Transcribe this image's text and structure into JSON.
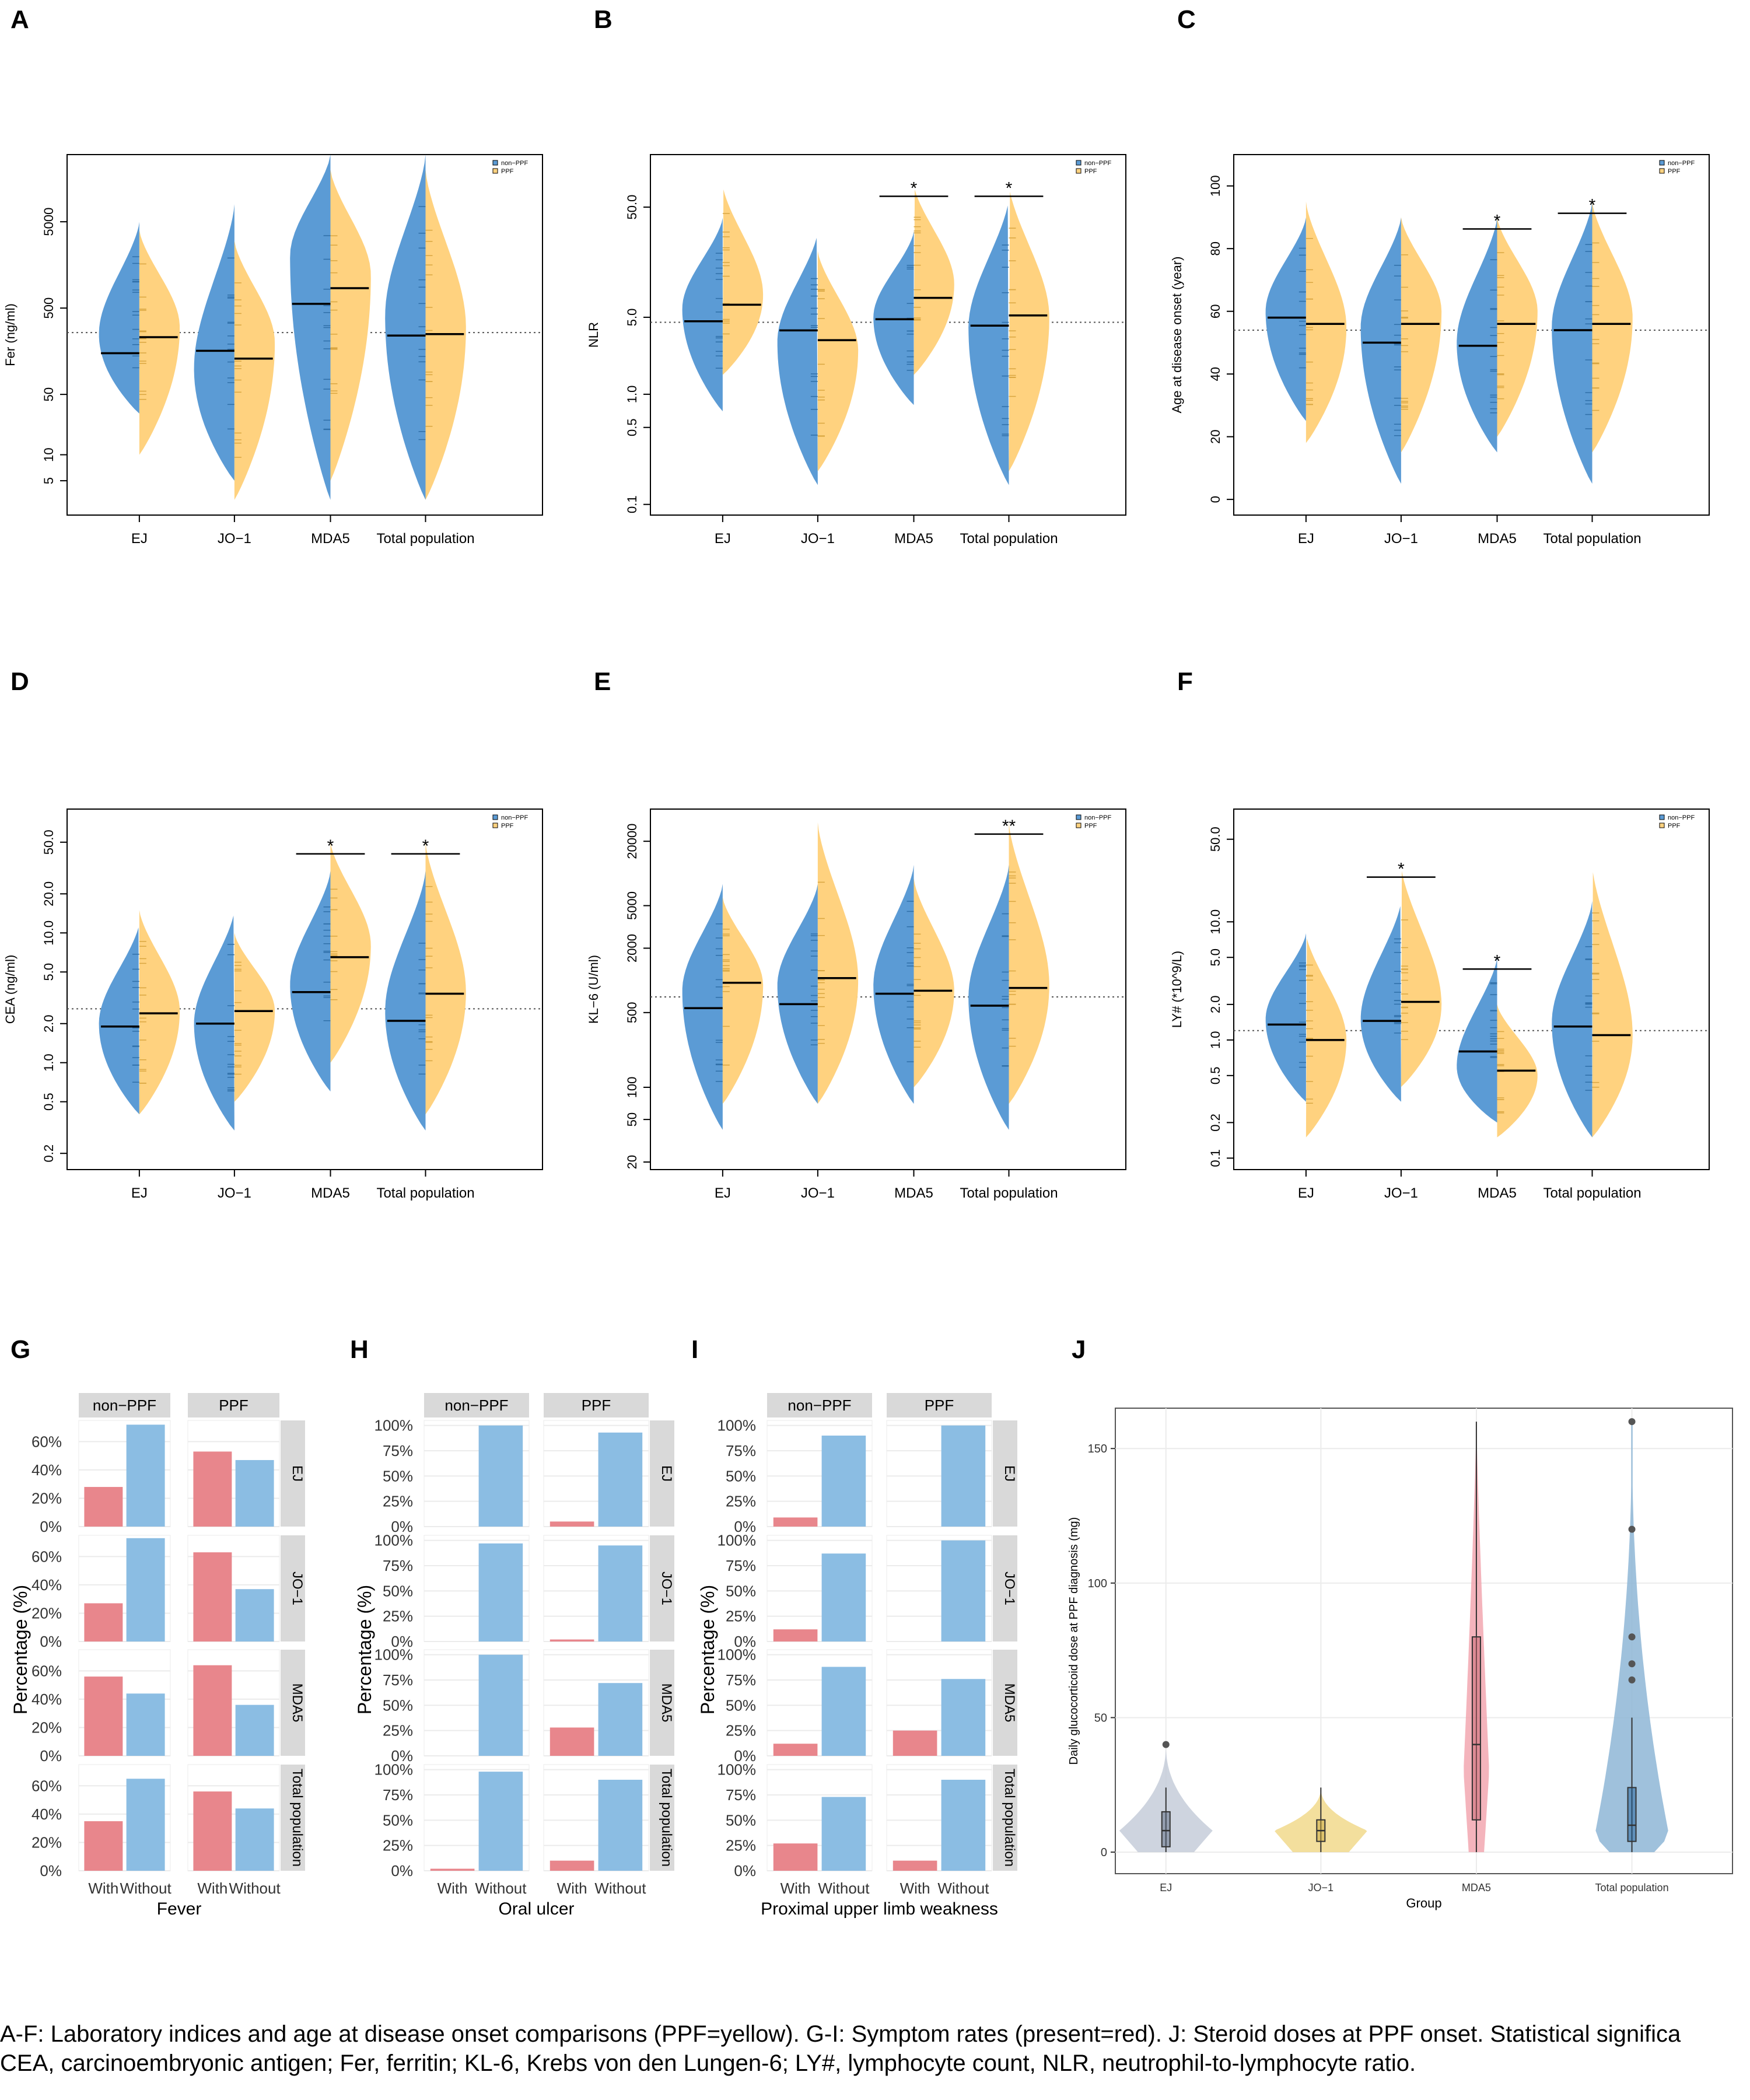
{
  "colors": {
    "nonppf": "#5b9bd5",
    "ppf": "#ffd27f",
    "with": "#e8868c",
    "without": "#8bbde3",
    "strip": "#d9d9d9",
    "ej": "#c6ccd9",
    "jo1": "#f1d98c",
    "mda5": "#f2a7b0",
    "total": "#8eb6d6"
  },
  "caption": {
    "line1": "A-F: Laboratory indices and age at disease onset comparisons (PPF=yellow). G-I: Symptom rates (present=red). J: Steroid doses at PPF onset. Statistical significa",
    "line2": "CEA, carcinoembryonic antigen; Fer, ferritin; KL-6, Krebs von den Lungen-6; LY#, lymphocyte count, NLR, neutrophil-to-lymphocyte ratio."
  },
  "chart_data": [
    {
      "id": "A",
      "type": "violin",
      "panel_label": "A",
      "ylabel": "Fer (ng/ml)",
      "yscale": "log",
      "ylim": [
        2,
        30000
      ],
      "yticks": [
        5,
        10,
        50,
        500,
        5000
      ],
      "categories": [
        "EJ",
        "JO−1",
        "MDA5",
        "Total population"
      ],
      "legend": [
        "non−PPF",
        "PPF"
      ],
      "legend_position": "top-right",
      "overall_median": 260,
      "series": [
        {
          "name": "non−PPF",
          "medians": [
            150,
            160,
            560,
            240
          ],
          "range": [
            [
              30,
              5000
            ],
            [
              5,
              8000
            ],
            [
              3,
              30000
            ],
            [
              3,
              30000
            ]
          ],
          "peak": [
            250,
            100,
            2000,
            400
          ]
        },
        {
          "name": "PPF",
          "medians": [
            230,
            130,
            850,
            250
          ],
          "range": [
            [
              10,
              4000
            ],
            [
              3,
              3000
            ],
            [
              5,
              20000
            ],
            [
              3,
              20000
            ]
          ],
          "peak": [
            300,
            200,
            1200,
            300
          ]
        }
      ],
      "significance": [
        "",
        "",
        "",
        ""
      ]
    },
    {
      "id": "B",
      "type": "violin",
      "panel_label": "B",
      "ylabel": "NLR",
      "yscale": "log",
      "ylim": [
        0.08,
        150
      ],
      "yticks": [
        0.1,
        0.5,
        1.0,
        5.0,
        50.0
      ],
      "categories": [
        "EJ",
        "JO−1",
        "MDA5",
        "Total population"
      ],
      "legend": [
        "non−PPF",
        "PPF"
      ],
      "legend_position": "top-right",
      "overall_median": 4.5,
      "series": [
        {
          "name": "non−PPF",
          "medians": [
            4.6,
            3.8,
            4.8,
            4.2
          ],
          "range": [
            [
              0.7,
              40
            ],
            [
              0.15,
              30
            ],
            [
              0.8,
              30
            ],
            [
              0.15,
              60
            ]
          ],
          "peak": [
            6,
            3,
            5,
            4
          ]
        },
        {
          "name": "PPF",
          "medians": [
            6.5,
            3.1,
            7.5,
            5.2
          ],
          "range": [
            [
              1.5,
              80
            ],
            [
              0.2,
              20
            ],
            [
              1.5,
              80
            ],
            [
              0.2,
              80
            ]
          ],
          "peak": [
            8,
            2.5,
            10,
            5
          ]
        }
      ],
      "significance": [
        "",
        "",
        "*",
        "*"
      ]
    },
    {
      "id": "C",
      "type": "violin",
      "panel_label": "C",
      "ylabel": "Age at disease onset (year)",
      "yscale": "linear",
      "ylim": [
        -5,
        110
      ],
      "yticks": [
        0,
        20,
        40,
        60,
        80,
        100
      ],
      "categories": [
        "EJ",
        "JO−1",
        "MDA5",
        "Total population"
      ],
      "legend": [
        "non−PPF",
        "PPF"
      ],
      "legend_position": "top-right",
      "overall_median": 54,
      "series": [
        {
          "name": "non−PPF",
          "medians": [
            58,
            50,
            49,
            54
          ],
          "range": [
            [
              25,
              90
            ],
            [
              5,
              90
            ],
            [
              15,
              90
            ],
            [
              5,
              95
            ]
          ],
          "peak": [
            60,
            55,
            50,
            55
          ]
        },
        {
          "name": "PPF",
          "medians": [
            56,
            56,
            56,
            56
          ],
          "range": [
            [
              18,
              95
            ],
            [
              15,
              90
            ],
            [
              20,
              90
            ],
            [
              15,
              95
            ]
          ],
          "peak": [
            55,
            60,
            60,
            58
          ]
        }
      ],
      "significance": [
        "",
        "",
        "*",
        "*"
      ]
    },
    {
      "id": "D",
      "type": "violin",
      "panel_label": "D",
      "ylabel": "CEA (ng/ml)",
      "yscale": "log",
      "ylim": [
        0.15,
        90
      ],
      "yticks": [
        0.2,
        0.5,
        1.0,
        2.0,
        5.0,
        10.0,
        20.0,
        50.0
      ],
      "categories": [
        "EJ",
        "JO−1",
        "MDA5",
        "Total population"
      ],
      "legend": [
        "non−PPF",
        "PPF"
      ],
      "legend_position": "top-right",
      "overall_median": 2.6,
      "series": [
        {
          "name": "non−PPF",
          "medians": [
            1.9,
            2.0,
            3.5,
            2.1
          ],
          "range": [
            [
              0.4,
              12
            ],
            [
              0.3,
              15
            ],
            [
              0.6,
              30
            ],
            [
              0.3,
              30
            ]
          ],
          "peak": [
            2,
            2,
            4,
            2.5
          ]
        },
        {
          "name": "PPF",
          "medians": [
            2.4,
            2.5,
            6.5,
            3.4
          ],
          "range": [
            [
              0.4,
              15
            ],
            [
              0.5,
              10
            ],
            [
              1.0,
              50
            ],
            [
              0.4,
              50
            ]
          ],
          "peak": [
            2.5,
            2.5,
            8,
            3.5
          ]
        }
      ],
      "significance": [
        "",
        "",
        "*",
        "*"
      ]
    },
    {
      "id": "E",
      "type": "violin",
      "panel_label": "E",
      "ylabel": "KL−6 (U/ml)",
      "yscale": "log",
      "ylim": [
        17,
        40000
      ],
      "yticks": [
        20,
        50,
        100,
        500,
        2000,
        5000,
        20000
      ],
      "categories": [
        "EJ",
        "JO−1",
        "MDA5",
        "Total population"
      ],
      "legend": [
        "non−PPF",
        "PPF"
      ],
      "legend_position": "top-right",
      "overall_median": 700,
      "series": [
        {
          "name": "non−PPF",
          "medians": [
            550,
            600,
            750,
            580
          ],
          "range": [
            [
              40,
              8000
            ],
            [
              70,
              8000
            ],
            [
              70,
              12000
            ],
            [
              40,
              12000
            ]
          ],
          "peak": [
            800,
            900,
            900,
            700
          ]
        },
        {
          "name": "PPF",
          "medians": [
            950,
            1050,
            800,
            850
          ],
          "range": [
            [
              70,
              6000
            ],
            [
              70,
              30000
            ],
            [
              100,
              9000
            ],
            [
              70,
              30000
            ]
          ],
          "peak": [
            900,
            1000,
            800,
            900
          ]
        }
      ],
      "significance": [
        "",
        "",
        "",
        "**"
      ]
    },
    {
      "id": "F",
      "type": "violin",
      "panel_label": "F",
      "ylabel": "LY# (*10^9/L)",
      "yscale": "log",
      "ylim": [
        0.08,
        90
      ],
      "yticks": [
        0.1,
        0.2,
        0.5,
        1.0,
        2.0,
        5.0,
        10.0,
        50.0
      ],
      "categories": [
        "EJ",
        "JO−1",
        "MDA5",
        "Total population"
      ],
      "legend": [
        "non−PPF",
        "PPF"
      ],
      "legend_position": "top-right",
      "overall_median": 1.2,
      "series": [
        {
          "name": "non−PPF",
          "medians": [
            1.35,
            1.45,
            0.8,
            1.3
          ],
          "range": [
            [
              0.3,
              8
            ],
            [
              0.3,
              15
            ],
            [
              0.2,
              5
            ],
            [
              0.15,
              15
            ]
          ],
          "peak": [
            1.5,
            1.5,
            0.6,
            1.4
          ]
        },
        {
          "name": "PPF",
          "medians": [
            1.0,
            2.1,
            0.55,
            1.1
          ],
          "range": [
            [
              0.15,
              8
            ],
            [
              0.4,
              30
            ],
            [
              0.15,
              2
            ],
            [
              0.15,
              30
            ]
          ],
          "peak": [
            1.0,
            2.0,
            0.5,
            1.1
          ]
        }
      ],
      "significance": [
        "",
        "*",
        "*",
        ""
      ]
    },
    {
      "id": "G",
      "type": "bar",
      "panel_label": "G",
      "xlabel": "Fever",
      "ylabel": "Percentage (%)",
      "columns": [
        "non−PPF",
        "PPF"
      ],
      "rows": [
        "EJ",
        "JO−1",
        "MDA5",
        "Total population"
      ],
      "categories": [
        "With",
        "Without"
      ],
      "yticks": [
        0,
        20,
        40,
        60
      ],
      "ymax": 75,
      "tick_suffix": "%",
      "values": [
        [
          [
            28,
            72
          ],
          [
            53,
            47
          ]
        ],
        [
          [
            27,
            73
          ],
          [
            63,
            37
          ]
        ],
        [
          [
            56,
            44
          ],
          [
            64,
            36
          ]
        ],
        [
          [
            35,
            65
          ],
          [
            56,
            44
          ]
        ]
      ]
    },
    {
      "id": "H",
      "type": "bar",
      "panel_label": "H",
      "xlabel": "Oral ulcer",
      "ylabel": "Percentage (%)",
      "columns": [
        "non−PPF",
        "PPF"
      ],
      "rows": [
        "EJ",
        "JO−1",
        "MDA5",
        "Total population"
      ],
      "categories": [
        "With",
        "Without"
      ],
      "yticks": [
        0,
        25,
        50,
        75,
        100
      ],
      "ymax": 105,
      "tick_suffix": "%",
      "values": [
        [
          [
            0,
            100
          ],
          [
            5,
            93
          ]
        ],
        [
          [
            0,
            97
          ],
          [
            2,
            95
          ]
        ],
        [
          [
            0,
            100
          ],
          [
            28,
            72
          ]
        ],
        [
          [
            2,
            98
          ],
          [
            10,
            90
          ]
        ]
      ]
    },
    {
      "id": "I",
      "type": "bar",
      "panel_label": "I",
      "xlabel": "Proximal upper limb weakness",
      "ylabel": "Percentage (%)",
      "columns": [
        "non−PPF",
        "PPF"
      ],
      "rows": [
        "EJ",
        "JO−1",
        "MDA5",
        "Total population"
      ],
      "categories": [
        "With",
        "Without"
      ],
      "yticks": [
        0,
        25,
        50,
        75,
        100
      ],
      "ymax": 105,
      "tick_suffix": "%",
      "values": [
        [
          [
            9,
            90
          ],
          [
            0,
            100
          ]
        ],
        [
          [
            12,
            87
          ],
          [
            0,
            100
          ]
        ],
        [
          [
            12,
            88
          ],
          [
            25,
            76
          ]
        ],
        [
          [
            27,
            73
          ],
          [
            10,
            90
          ]
        ]
      ]
    },
    {
      "id": "J",
      "type": "violin",
      "panel_label": "J",
      "xlabel": "Group",
      "ylabel": "Daily glucocorticoid dose at PPF diagnosis (mg)",
      "yscale": "linear",
      "ylim": [
        -8,
        165
      ],
      "yticks": [
        0,
        50,
        100,
        150
      ],
      "categories": [
        "EJ",
        "JO−1",
        "MDA5",
        "Total population"
      ],
      "box": [
        {
          "q1": 2,
          "median": 8,
          "q3": 15,
          "min": 0,
          "max": 24,
          "max_val": 40,
          "outliers": [
            40
          ]
        },
        {
          "q1": 4,
          "median": 8,
          "q3": 12,
          "min": 0,
          "max": 24,
          "max_val": 24,
          "outliers": []
        },
        {
          "q1": 12,
          "median": 40,
          "q3": 80,
          "min": 0,
          "max": 160,
          "max_val": 160,
          "outliers": []
        },
        {
          "q1": 4,
          "median": 10,
          "q3": 24,
          "min": 0,
          "max": 50,
          "max_val": 160,
          "outliers": [
            64,
            70,
            80,
            120,
            160
          ]
        }
      ]
    }
  ]
}
